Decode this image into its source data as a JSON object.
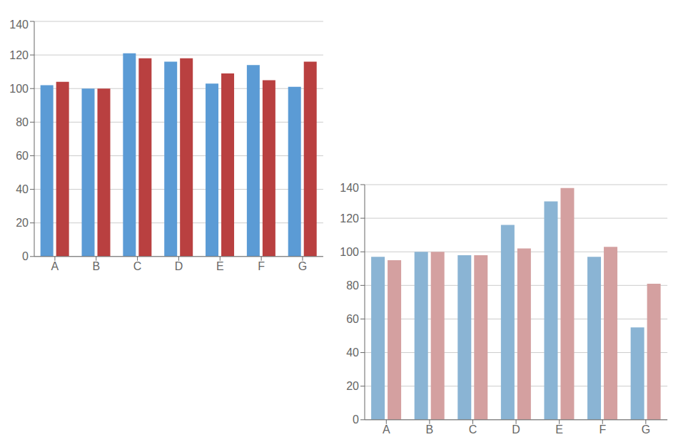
{
  "chart_data": [
    {
      "type": "bar",
      "categories": [
        "A",
        "B",
        "C",
        "D",
        "E",
        "F",
        "G"
      ],
      "series": [
        {
          "color": "#5b9bd5",
          "values": [
            102,
            100,
            121,
            116,
            103,
            114,
            101
          ]
        },
        {
          "color": "#b94040",
          "values": [
            104,
            100,
            118,
            118,
            109,
            105,
            116
          ]
        }
      ],
      "ylim": [
        0,
        140
      ],
      "yticks": [
        0,
        20,
        40,
        60,
        80,
        100,
        120,
        140
      ],
      "grid": true
    },
    {
      "type": "bar",
      "categories": [
        "A",
        "B",
        "C",
        "D",
        "E",
        "F",
        "G"
      ],
      "series": [
        {
          "color": "#8ab4d4",
          "values": [
            97,
            100,
            98,
            116,
            130,
            97,
            55
          ]
        },
        {
          "color": "#d4a0a0",
          "values": [
            95,
            100,
            98,
            102,
            138,
            103,
            81
          ]
        }
      ],
      "ylim": [
        0,
        140
      ],
      "yticks": [
        0,
        20,
        40,
        60,
        80,
        100,
        120,
        140
      ],
      "grid": true
    }
  ]
}
